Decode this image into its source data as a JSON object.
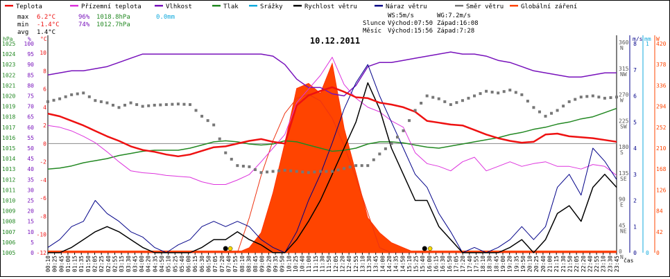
{
  "chart_data": {
    "type": "line",
    "title": "10.12.2011",
    "legend": [
      {
        "name": "Teplota",
        "color": "#ee1111"
      },
      {
        "name": "Přízemní teplota",
        "color": "#dd33dd"
      },
      {
        "name": "Vlhkost",
        "color": "#7711bb"
      },
      {
        "name": "Tlak",
        "color": "#228822"
      },
      {
        "name": "Srážky",
        "color": "#11aadd"
      },
      {
        "name": "Rychlost větru",
        "color": "#000000"
      },
      {
        "name": "Náraz větru",
        "color": "#000088"
      },
      {
        "name": "Směr větru",
        "color": "#777777"
      },
      {
        "name": "Globální záření",
        "color": "#ff4400"
      }
    ],
    "stats": {
      "rows": [
        {
          "label": "max",
          "temp": "6.2°C",
          "hum": "96%",
          "press": "1018.8hPa",
          "rain": "0.0mm"
        },
        {
          "label": "min",
          "temp": "-1.4°C",
          "hum": "74%",
          "press": "1012.7hPa",
          "rain": ""
        },
        {
          "label": "avg",
          "temp": "1.4°C",
          "hum": "",
          "press": "",
          "rain": ""
        }
      ],
      "ws": "WS:5m/s",
      "wg": "WG:7.2m/s",
      "slunce_label": "Slunce",
      "slunce_vychod": "Východ:07:50",
      "slunce_zapad": "Západ:16:08",
      "mesic_label": "Měsíc",
      "mesic_vychod": "Východ:15:56",
      "mesic_zapad": "Západ:7:28"
    },
    "axes": {
      "hpa_label": "hPa",
      "pct_label": "%",
      "c_label": "°C",
      "ms_label": "m/s",
      "mm_label": "mm",
      "w_label": "W",
      "x_label": "čas",
      "hpa_ticks": [
        "1025",
        "1024",
        "1023",
        "1022",
        "1021",
        "1020",
        "1019",
        "1018",
        "1017",
        "1016",
        "1015",
        "1014",
        "1013",
        "1012",
        "1011",
        "1010",
        "1009",
        "1008",
        "1007",
        "1006",
        "1005"
      ],
      "pct_ticks": [
        "100",
        "95",
        "90",
        "85",
        "80",
        "75",
        "70",
        "65",
        "60",
        "55",
        "50",
        "45",
        "40",
        "35",
        "30",
        "25",
        "20",
        "15",
        "10",
        "5",
        "0"
      ],
      "c_ticks": [
        "10",
        "8",
        "6",
        "4",
        "2",
        "0",
        "-2",
        "-4",
        "-6",
        "-8",
        "-10",
        "-12"
      ],
      "dir_ticks": [
        {
          "deg": "360",
          "dir": "N"
        },
        {
          "deg": "315",
          "dir": "NW"
        },
        {
          "deg": "270",
          "dir": "W"
        },
        {
          "deg": "225",
          "dir": "SW"
        },
        {
          "deg": "180",
          "dir": "S"
        },
        {
          "deg": "135",
          "dir": "SE"
        },
        {
          "deg": "90",
          "dir": "E"
        },
        {
          "deg": "45",
          "dir": "NE"
        },
        {
          "deg": "0",
          "dir": "N"
        }
      ],
      "ms_ticks": [
        "8",
        "7",
        "6",
        "5",
        "4",
        "3",
        "2",
        "1",
        "0"
      ],
      "mm_ticks": [
        "1",
        "0"
      ],
      "w_ticks": [
        "420",
        "378",
        "336",
        "294",
        "252",
        "210",
        "168",
        "126",
        "84",
        "42",
        "0"
      ],
      "x_ticks": [
        "00:10",
        "00:25",
        "00:45",
        "01:00",
        "01:15",
        "01:35",
        "01:50",
        "02:05",
        "02:25",
        "02:40",
        "02:55",
        "03:15",
        "03:30",
        "03:45",
        "04:00",
        "04:20",
        "04:35",
        "04:50",
        "05:10",
        "05:25",
        "05:40",
        "06:00",
        "06:15",
        "06:30",
        "06:50",
        "07:05",
        "07:20",
        "07:40",
        "07:55",
        "08:10",
        "08:30",
        "08:45",
        "09:00",
        "09:20",
        "09:35",
        "09:50",
        "10:10",
        "10:25",
        "10:40",
        "11:00",
        "11:15",
        "11:30",
        "11:50",
        "12:05",
        "12:20",
        "12:40",
        "12:55",
        "13:10",
        "13:30",
        "13:45",
        "14:00",
        "14:20",
        "14:35",
        "14:50",
        "15:10",
        "15:25",
        "15:40",
        "16:00",
        "16:15",
        "16:30",
        "16:50",
        "17:05",
        "17:20",
        "17:40",
        "17:55",
        "18:10",
        "18:30",
        "18:45",
        "19:00",
        "19:20",
        "19:35",
        "19:50",
        "20:10",
        "20:25",
        "20:40",
        "21:00",
        "21:15",
        "21:30",
        "21:50",
        "22:05",
        "22:20",
        "22:40",
        "22:55",
        "23:10",
        "23:30",
        "23:45"
      ],
      "temp_range": [
        -12,
        11
      ],
      "hum_range": [
        0,
        100
      ],
      "press_range": [
        1005,
        1025
      ],
      "dir_range": [
        0,
        360
      ],
      "wind_range": [
        0,
        8
      ],
      "rad_range": [
        0,
        420
      ]
    },
    "series": {
      "hours": [
        0,
        0.5,
        1,
        1.5,
        2,
        2.5,
        3,
        3.5,
        4,
        4.5,
        5,
        5.5,
        6,
        6.5,
        7,
        7.5,
        8,
        8.5,
        9,
        9.5,
        10,
        10.5,
        11,
        11.5,
        12,
        12.5,
        13,
        13.5,
        14,
        14.5,
        15,
        15.5,
        16,
        16.5,
        17,
        17.5,
        18,
        18.5,
        19,
        19.5,
        20,
        20.5,
        21,
        21.5,
        22,
        22.5,
        23,
        23.5,
        24
      ],
      "teplota": [
        3.3,
        3.0,
        2.5,
        2.0,
        1.4,
        0.8,
        0.3,
        -0.3,
        -0.7,
        -0.9,
        -1.2,
        -1.4,
        -1.2,
        -0.8,
        -0.4,
        -0.3,
        0.0,
        0.3,
        0.5,
        0.2,
        0.0,
        4.2,
        5.3,
        5.8,
        6.2,
        5.7,
        5.1,
        5.0,
        4.5,
        4.3,
        4.0,
        3.5,
        2.5,
        2.3,
        2.1,
        2.0,
        1.5,
        1.0,
        0.6,
        0.3,
        0.1,
        0.2,
        1.0,
        1.1,
        0.8,
        0.7,
        0.6,
        0.4,
        0.2
      ],
      "prizemni": [
        2.0,
        1.8,
        1.4,
        0.8,
        0.1,
        -0.9,
        -2.0,
        -3.0,
        -3.2,
        -3.3,
        -3.5,
        -3.6,
        -3.7,
        -4.2,
        -4.5,
        -4.5,
        -4.0,
        -3.4,
        -2.0,
        -0.5,
        1.0,
        4.5,
        6.0,
        7.5,
        9.5,
        6.5,
        5.0,
        4.0,
        3.5,
        2.5,
        1.8,
        -1.0,
        -2.2,
        -2.5,
        -3.0,
        -2.0,
        -1.5,
        -3.0,
        -2.5,
        -2.0,
        -2.5,
        -2.2,
        -2.0,
        -2.5,
        -2.5,
        -2.8,
        -2.3,
        -2.5,
        -3.5
      ],
      "vlhkost": [
        85,
        86,
        87,
        87,
        88,
        89,
        91,
        93,
        95,
        95,
        95,
        95,
        95,
        95,
        95,
        95,
        95,
        95,
        95,
        94,
        90,
        83,
        79,
        79,
        76,
        75,
        80,
        89,
        91,
        91,
        92,
        93,
        94,
        95,
        96,
        95,
        95,
        94,
        92,
        91,
        89,
        87,
        86,
        85,
        84,
        84,
        85,
        86,
        86
      ],
      "tlak": [
        1013.0,
        1013.1,
        1013.3,
        1013.6,
        1013.8,
        1014.0,
        1014.3,
        1014.5,
        1014.7,
        1014.8,
        1014.8,
        1014.8,
        1015.0,
        1015.3,
        1015.6,
        1015.7,
        1015.6,
        1015.4,
        1015.3,
        1015.4,
        1015.7,
        1015.6,
        1015.3,
        1015.0,
        1014.7,
        1014.8,
        1015.0,
        1015.4,
        1015.6,
        1015.6,
        1015.5,
        1015.3,
        1015.1,
        1015.0,
        1015.2,
        1015.4,
        1015.6,
        1015.8,
        1016.0,
        1016.3,
        1016.5,
        1016.8,
        1017.0,
        1017.3,
        1017.5,
        1017.8,
        1018.0,
        1018.4,
        1018.8
      ],
      "rychlost": [
        0,
        0,
        0.2,
        0.5,
        0.8,
        1.0,
        0.8,
        0.5,
        0.2,
        0,
        0,
        0,
        0,
        0.2,
        0.5,
        0.5,
        0.8,
        0.5,
        0.3,
        0,
        0,
        0.5,
        1.2,
        2.0,
        3.0,
        4.0,
        5.0,
        6.5,
        5.5,
        4.0,
        3.0,
        2.0,
        2.0,
        1.0,
        0.5,
        0,
        0,
        0,
        0,
        0.2,
        0.5,
        0,
        0.5,
        1.5,
        1.8,
        1.2,
        2.5,
        3.0,
        2.5
      ],
      "naraz": [
        0.2,
        0.5,
        1.0,
        1.2,
        2.0,
        1.5,
        1.2,
        0.8,
        0.6,
        0.2,
        0,
        0.3,
        0.5,
        1.0,
        1.2,
        1.0,
        1.2,
        1.0,
        0.5,
        0.2,
        0,
        0.8,
        2.0,
        3.0,
        4.2,
        5.5,
        6.5,
        7.2,
        6.0,
        5.0,
        4.0,
        3.0,
        2.5,
        1.5,
        0.8,
        0,
        0.2,
        0,
        0.2,
        0.5,
        1.0,
        0.5,
        1.0,
        2.5,
        3.0,
        2.2,
        4.0,
        3.5,
        2.8
      ],
      "smer": [
        260,
        265,
        272,
        275,
        262,
        258,
        250,
        258,
        252,
        254,
        255,
        256,
        255,
        235,
        220,
        172,
        150,
        148,
        138,
        140,
        142,
        140,
        138,
        140,
        140,
        145,
        150,
        150,
        170,
        188,
        210,
        245,
        270,
        265,
        255,
        262,
        270,
        278,
        275,
        280,
        272,
        250,
        235,
        245,
        260,
        268,
        270,
        266,
        268
      ],
      "zareni": [
        0,
        0,
        0,
        0,
        0,
        0,
        0,
        0,
        0,
        0,
        0,
        0,
        0,
        0,
        0,
        0,
        0,
        10,
        40,
        120,
        220,
        330,
        340,
        320,
        380,
        250,
        160,
        70,
        40,
        20,
        10,
        0,
        0,
        0,
        0,
        0,
        0,
        0,
        0,
        0,
        0,
        0,
        0,
        0,
        0,
        0,
        0,
        0,
        0
      ],
      "teoreticke": [
        0,
        0,
        0,
        0,
        0,
        0,
        0,
        0,
        0,
        0,
        0,
        0,
        0,
        0,
        0,
        0,
        0,
        70,
        155,
        225,
        280,
        310,
        318,
        305,
        270,
        215,
        150,
        80,
        10,
        0,
        0,
        0,
        0,
        0,
        0,
        0,
        0,
        0,
        0,
        0,
        0,
        0,
        0,
        0,
        0,
        0,
        0,
        0,
        0
      ]
    }
  }
}
